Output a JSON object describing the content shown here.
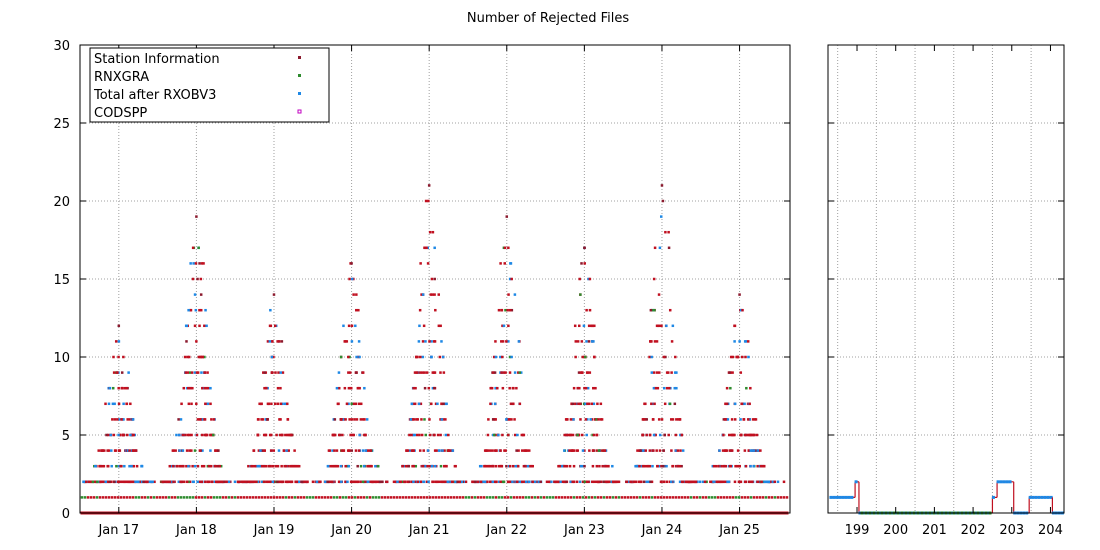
{
  "chart_data": {
    "type": "scatter",
    "title": "Number of Rejected Files",
    "xlabel": "",
    "ylabel": "",
    "ylim": [
      0,
      30
    ],
    "y_ticks": [
      0,
      5,
      10,
      15,
      20,
      25,
      30
    ],
    "grid": true,
    "legend_position": "top-left",
    "legend": [
      {
        "name": "Station Information",
        "color": "#8b1a2e"
      },
      {
        "name": "RNXGRA",
        "color": "#2e8b2e"
      },
      {
        "name": "Total after RXOBV3",
        "color": "#1e88e5"
      },
      {
        "name": "CODSPP",
        "color": "#c000c0"
      }
    ],
    "left_panel": {
      "x_tick_labels": [
        "Jan 17",
        "Jan 18",
        "Jan 19",
        "Jan 20",
        "Jan 21",
        "Jan 22",
        "Jan 23",
        "Jan 24",
        "Jan 25"
      ],
      "x_range": [
        16.5,
        25.65
      ],
      "daily_peaks": [
        {
          "day": 17,
          "peak": 12
        },
        {
          "day": 18,
          "peak": 19
        },
        {
          "day": 19,
          "peak": 14
        },
        {
          "day": 20,
          "peak": 16
        },
        {
          "day": 21,
          "peak": 21
        },
        {
          "day": 22,
          "peak": 19
        },
        {
          "day": 23,
          "peak": 17
        },
        {
          "day": 24,
          "peak": 21
        },
        {
          "day": 25,
          "peak": 14
        }
      ]
    },
    "right_panel": {
      "x_tick_labels": [
        "199",
        "200",
        "201",
        "202",
        "203",
        "204"
      ],
      "x_range": [
        198.25,
        204.35
      ],
      "total_steps": [
        {
          "x0": 198.3,
          "x1": 198.95,
          "y": 1
        },
        {
          "x0": 198.95,
          "x1": 199.05,
          "y": 2
        },
        {
          "x0": 199.05,
          "x1": 202.5,
          "y": 0
        },
        {
          "x0": 202.5,
          "x1": 202.62,
          "y": 1
        },
        {
          "x0": 202.62,
          "x1": 203.05,
          "y": 2
        },
        {
          "x0": 203.05,
          "x1": 203.45,
          "y": 0
        },
        {
          "x0": 203.45,
          "x1": 204.05,
          "y": 1
        },
        {
          "x0": 204.05,
          "x1": 204.35,
          "y": 0
        }
      ]
    }
  }
}
